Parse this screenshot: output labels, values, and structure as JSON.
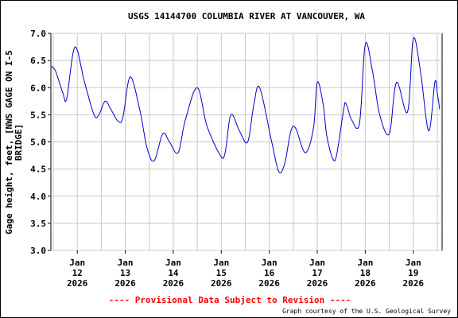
{
  "chart_data": {
    "type": "line",
    "title": "USGS 14144700 COLUMBIA RIVER AT VANCOUVER, WA",
    "ylabel_lines": [
      "Gage height, feet, [NWS GAGE ON I-5",
      "BRIDGE]"
    ],
    "ylim": [
      3.0,
      7.0
    ],
    "y_ticks": [
      "3.0",
      "3.5",
      "4.0",
      "4.5",
      "5.0",
      "5.5",
      "6.0",
      "6.5",
      "7.0"
    ],
    "xlim_days": [
      11.45,
      19.6
    ],
    "x_ticks": [
      {
        "day": 12,
        "lines": [
          "Jan",
          "12",
          "2026"
        ]
      },
      {
        "day": 13,
        "lines": [
          "Jan",
          "13",
          "2026"
        ]
      },
      {
        "day": 14,
        "lines": [
          "Jan",
          "14",
          "2026"
        ]
      },
      {
        "day": 15,
        "lines": [
          "Jan",
          "15",
          "2026"
        ]
      },
      {
        "day": 16,
        "lines": [
          "Jan",
          "16",
          "2026"
        ]
      },
      {
        "day": 17,
        "lines": [
          "Jan",
          "17",
          "2026"
        ]
      },
      {
        "day": 18,
        "lines": [
          "Jan",
          "18",
          "2026"
        ]
      },
      {
        "day": 19,
        "lines": [
          "Jan",
          "19",
          "2026"
        ]
      }
    ],
    "grid": true,
    "line_color": "#0000cc",
    "series": [
      {
        "x": [
          11.45,
          11.55,
          11.7,
          11.78,
          11.95,
          12.15,
          12.35,
          12.45,
          12.58,
          12.7,
          12.85,
          12.95,
          13.1,
          13.3,
          13.45,
          13.6,
          13.78,
          13.92,
          14.1,
          14.25,
          14.5,
          14.7,
          14.98,
          15.08,
          15.2,
          15.38,
          15.55,
          15.68,
          15.8,
          16.05,
          16.2,
          16.32,
          16.45,
          16.55,
          16.75,
          16.92,
          17.0,
          17.12,
          17.2,
          17.32,
          17.4,
          17.55,
          17.6,
          17.72,
          17.88,
          18.0,
          18.15,
          18.3,
          18.5,
          18.65,
          18.88,
          19.0,
          19.15,
          19.32,
          19.45,
          19.5,
          19.55
        ],
        "y": [
          6.4,
          6.3,
          5.9,
          5.8,
          6.75,
          6.1,
          5.5,
          5.5,
          5.75,
          5.6,
          5.38,
          5.45,
          6.2,
          5.6,
          4.9,
          4.65,
          5.15,
          5.0,
          4.8,
          5.4,
          6.0,
          5.3,
          4.75,
          4.8,
          5.5,
          5.2,
          5.0,
          5.7,
          6.0,
          5.0,
          4.45,
          4.6,
          5.2,
          5.25,
          4.8,
          5.25,
          6.1,
          5.7,
          5.1,
          4.7,
          4.75,
          5.6,
          5.7,
          5.4,
          5.35,
          6.8,
          6.3,
          5.5,
          5.15,
          6.1,
          5.55,
          6.9,
          6.3,
          5.2,
          6.1,
          5.9,
          5.6
        ]
      }
    ]
  },
  "footer": {
    "provisional": "---- Provisional Data Subject to Revision ----",
    "credit": "Graph courtesy of the U.S. Geological Survey",
    "provisional_color": "#ff0000"
  }
}
